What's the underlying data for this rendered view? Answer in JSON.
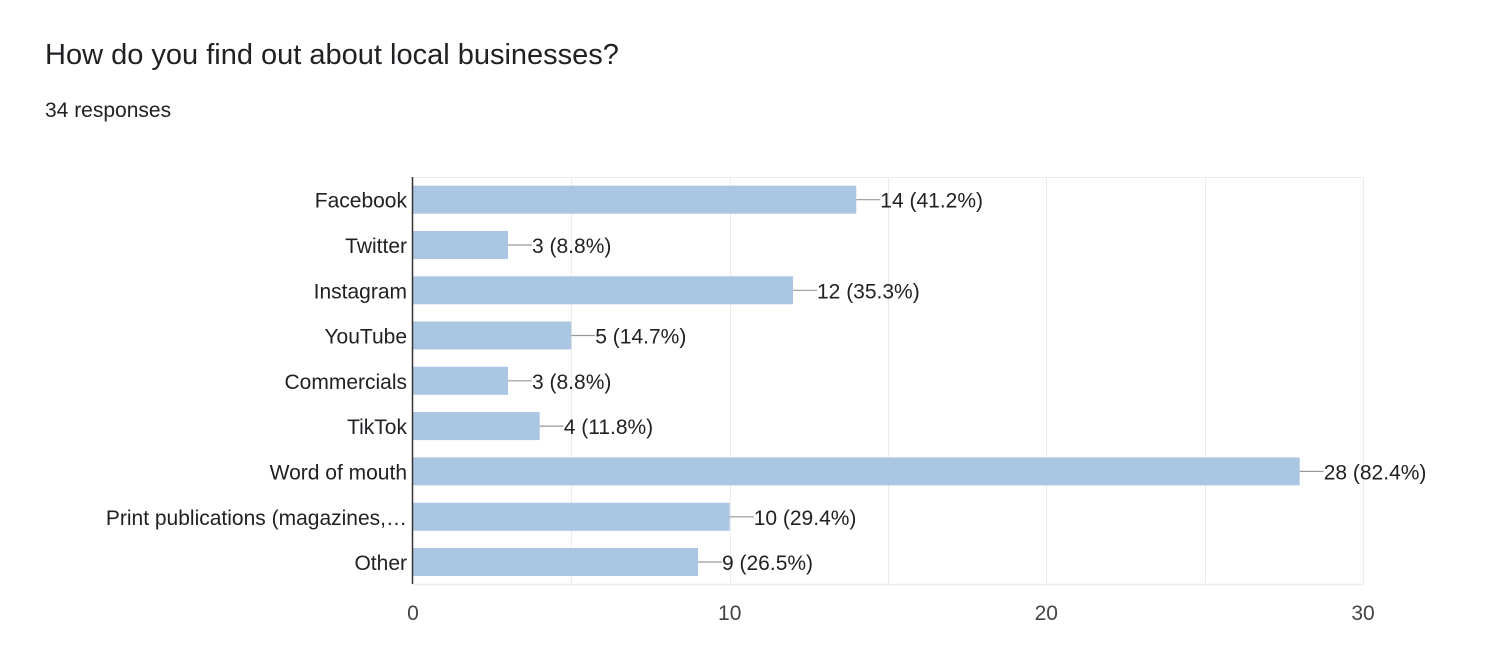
{
  "question": {
    "title": "How do you find out about local businesses?",
    "responses": "34 responses"
  },
  "colors": {
    "bar": "#aac6e2",
    "grid": "#ececec",
    "axis": "#333333",
    "connector": "#999999",
    "text": "#202124",
    "tick": "#444444"
  },
  "chart_data": {
    "type": "bar",
    "orientation": "horizontal",
    "title": "",
    "xlabel": "",
    "ylabel": "",
    "xlim": [
      0,
      30
    ],
    "x_ticks": [
      0,
      10,
      20,
      30
    ],
    "grid": true,
    "categories": [
      "Facebook",
      "Twitter",
      "Instagram",
      "YouTube",
      "Commercials",
      "TikTok",
      "Word of mouth",
      "Print publications (magazines,…",
      "Other"
    ],
    "values": [
      14,
      3,
      12,
      5,
      3,
      4,
      28,
      10,
      9
    ],
    "labels": [
      "14 (41.2%)",
      "3 (8.8%)",
      "12 (35.3%)",
      "5 (14.7%)",
      "3 (8.8%)",
      "4 (11.8%)",
      "28 (82.4%)",
      "10 (29.4%)",
      "9 (26.5%)"
    ]
  }
}
